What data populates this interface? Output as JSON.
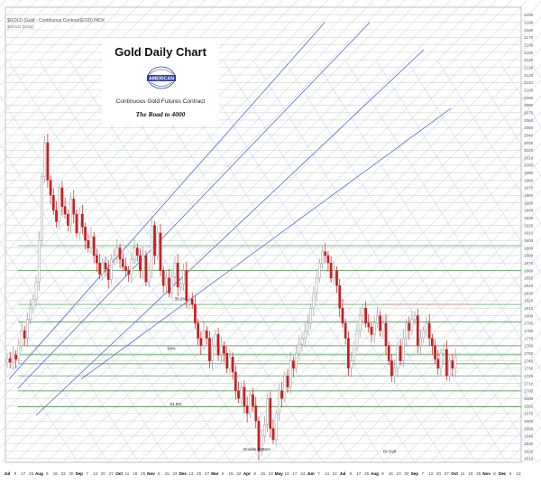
{
  "header": {
    "symbol_line": "$GOLD (Gold - Continuous Contract(EOD) INDX",
    "symbol_sub": "$GOLD (Daily)"
  },
  "title_box": {
    "title": "Gold Daily Chart",
    "subtitle": "Continuous Gold Futures Contract",
    "tagline": "The Road to 4000",
    "logo_text": "AMERICAN"
  },
  "colors": {
    "background": "#ffffff",
    "up_candle": "#9a9a9a",
    "down_candle": "#c81e1e",
    "fan_light": "#b9c2ef",
    "fan_dark": "#4a55d8",
    "support_green": "#3f8f3f",
    "grid_horizontal": "#c9d8c0",
    "resistance_red": "#e08080"
  },
  "chart_data": {
    "type": "candlestick",
    "title": "Gold Daily Chart",
    "y_ticks": [
      1610,
      1620,
      1630,
      1640,
      1650,
      1660,
      1670,
      1680,
      1690,
      1700,
      1710,
      1720,
      1730,
      1740,
      1750,
      1760,
      1770,
      1780,
      1790,
      1800,
      1810,
      1820,
      1830,
      1840,
      1850,
      1860,
      1870,
      1880,
      1890,
      1900,
      1910,
      1920,
      1930,
      1940,
      1950,
      1960,
      1970,
      1980,
      1990,
      2000,
      2010,
      2020,
      2030,
      2040,
      2050,
      2060,
      2070,
      2080,
      2090,
      2100,
      2110,
      2120,
      2130,
      2140,
      2150,
      2160,
      2170,
      2180,
      2190,
      2200
    ],
    "ylim": [
      1605,
      2210
    ],
    "x_labels": [
      "Jul",
      "9",
      "17",
      "25",
      "Aug",
      "9",
      "16",
      "23",
      "30",
      "Sep",
      "7",
      "13",
      "20",
      "27",
      "Oct",
      "11",
      "18",
      "25",
      "Nov",
      "8",
      "15",
      "22",
      "Dec",
      "13",
      "20",
      "27",
      "Mar",
      "9",
      "15",
      "22",
      "Apr",
      "8",
      "15",
      "22",
      "May",
      "10",
      "17",
      "24",
      "Jun",
      "7",
      "14",
      "22",
      "Jul",
      "9",
      "17",
      "25",
      "Aug",
      "9",
      "16",
      "23",
      "30",
      "Sep",
      "7",
      "13",
      "20",
      "27",
      "Oct",
      "11",
      "18",
      "25",
      "Nov",
      "8",
      "Dec",
      "6",
      "13"
    ],
    "price_close": [
      1743,
      1738,
      1748,
      1742,
      1760,
      1780,
      1770,
      1795,
      1810,
      1822,
      1845,
      1900,
      1985,
      2030,
      1980,
      1960,
      1940,
      1925,
      1970,
      1945,
      1935,
      1920,
      1955,
      1935,
      1910,
      1935,
      1918,
      1900,
      1890,
      1905,
      1880,
      1870,
      1855,
      1870,
      1862,
      1848,
      1875,
      1880,
      1890,
      1875,
      1865,
      1860,
      1855,
      1875,
      1890,
      1880,
      1860,
      1880,
      1845,
      1860,
      1920,
      1880,
      1910,
      1860,
      1840,
      1850,
      1830,
      1852,
      1870,
      1838,
      1842,
      1860,
      1820,
      1822,
      1815,
      1790,
      1770,
      1760,
      1780,
      1770,
      1740,
      1760,
      1775,
      1748,
      1760,
      1750,
      1730,
      1745,
      1725,
      1700,
      1690,
      1705,
      1680,
      1670,
      1695,
      1680,
      1660,
      1620,
      1640,
      1655,
      1690,
      1650,
      1635,
      1670,
      1700,
      1690,
      1720,
      1705,
      1740,
      1730,
      1750,
      1762,
      1770,
      1780,
      1790,
      1810,
      1830,
      1850,
      1870,
      1885,
      1880,
      1870,
      1850,
      1860,
      1840,
      1810,
      1790,
      1770,
      1730,
      1740,
      1760,
      1780,
      1800,
      1810,
      1790,
      1785,
      1775,
      1790,
      1800,
      1780,
      1790,
      1760,
      1740,
      1720,
      1730,
      1760,
      1740,
      1770,
      1790,
      1780,
      1795,
      1800,
      1760,
      1770,
      1780,
      1790,
      1770,
      1760,
      1742,
      1730,
      1750,
      1755,
      1720,
      1740,
      1730,
      1745
    ],
    "annotations": [
      {
        "label": "38.2%",
        "price": 1818
      },
      {
        "label": "50%",
        "price": 1752
      },
      {
        "label": "61.8%",
        "price": 1678
      },
      {
        "label": "Double Bottom",
        "price": 1618
      },
      {
        "label": "Dr Cell",
        "price": 1615
      }
    ],
    "support_levels": [
      1679,
      1700,
      1720,
      1736,
      1748,
      1760,
      1792,
      1815,
      1860,
      1893
    ],
    "resistance_levels": [
      1815
    ]
  }
}
